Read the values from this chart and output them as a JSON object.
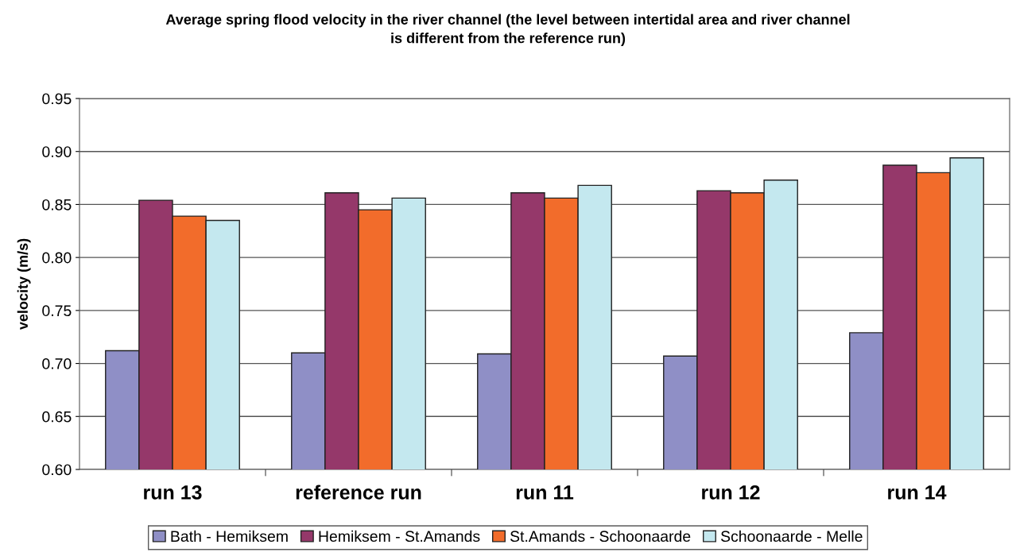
{
  "chart_data": {
    "type": "bar",
    "title": "Average spring flood velocity in the river channel (the level between intertidal area and river channel\nis different from the reference run)",
    "ylabel": "velocity (m/s)",
    "categories": [
      "run 13",
      "reference run",
      "run 11",
      "run 12",
      "run 14"
    ],
    "series": [
      {
        "name": "Bath - Hemiksem",
        "color": "#8f8fc6",
        "values": [
          0.712,
          0.71,
          0.709,
          0.707,
          0.729
        ]
      },
      {
        "name": "Hemiksem - St.Amands",
        "color": "#95386a",
        "values": [
          0.854,
          0.861,
          0.861,
          0.863,
          0.887
        ]
      },
      {
        "name": "St.Amands - Schoonaarde",
        "color": "#f26c2b",
        "values": [
          0.839,
          0.845,
          0.856,
          0.861,
          0.88
        ]
      },
      {
        "name": "Schoonaarde - Melle",
        "color": "#c4e8ef",
        "values": [
          0.835,
          0.856,
          0.868,
          0.873,
          0.894
        ]
      }
    ],
    "ylim": [
      0.6,
      0.95
    ],
    "yticks": [
      {
        "value": 0.6,
        "label": "0.60"
      },
      {
        "value": 0.65,
        "label": "0.65"
      },
      {
        "value": 0.7,
        "label": "0.70"
      },
      {
        "value": 0.75,
        "label": "0.75"
      },
      {
        "value": 0.8,
        "label": "0.80"
      },
      {
        "value": 0.85,
        "label": "0.85"
      },
      {
        "value": 0.9,
        "label": "0.90"
      },
      {
        "value": 0.95,
        "label": "0.95"
      }
    ],
    "grid": "y",
    "legend": "bottom"
  }
}
